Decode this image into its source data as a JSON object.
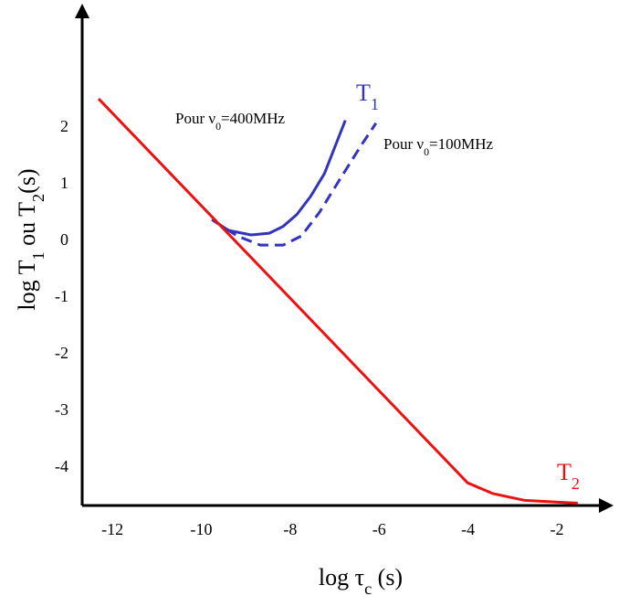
{
  "chart_data": {
    "type": "line",
    "x_label": [
      "log τ",
      "c",
      " (s)"
    ],
    "y_label": [
      "log T",
      "1",
      " ou T",
      "2",
      "(s)"
    ],
    "xlim": [
      -12.68,
      -0.87
    ],
    "ylim": [
      -4.69,
      4.06
    ],
    "xticks": [
      -12,
      -10,
      -8,
      -6,
      -4,
      -2
    ],
    "yticks": [
      -4,
      -3,
      -2,
      -1,
      0,
      1,
      2
    ],
    "grid": false,
    "series": [
      {
        "name": [
          "Pour ν",
          "0",
          "=400MHz"
        ],
        "color": "#3333bb",
        "dashed": false,
        "x": [
          -9.76,
          -9.39,
          -8.88,
          -8.47,
          -8.16,
          -7.85,
          -7.54,
          -7.23,
          -6.76
        ],
        "values": [
          0.35,
          0.16,
          0.08,
          0.11,
          0.23,
          0.44,
          0.76,
          1.16,
          2.1
        ]
      },
      {
        "name": [
          "Pour ν",
          "0",
          "=100MHz"
        ],
        "color": "#3333bb",
        "dashed": true,
        "x": [
          -9.76,
          -9.19,
          -8.67,
          -8.16,
          -7.75,
          -7.34,
          -6.93,
          -6.41,
          -6.07
        ],
        "values": [
          0.35,
          0.06,
          -0.1,
          -0.1,
          0.06,
          0.48,
          1.0,
          1.65,
          2.05
        ]
      },
      {
        "name": [
          "T",
          "2"
        ],
        "color": "#ee1111",
        "dashed": false,
        "x": [
          -12.31,
          -4.01,
          -3.44,
          -2.72,
          -1.53
        ],
        "values": [
          2.48,
          -4.29,
          -4.48,
          -4.6,
          -4.65
        ]
      }
    ],
    "annotations": [
      {
        "parts": [
          "T",
          "1"
        ],
        "color": "#3333bb"
      }
    ]
  }
}
